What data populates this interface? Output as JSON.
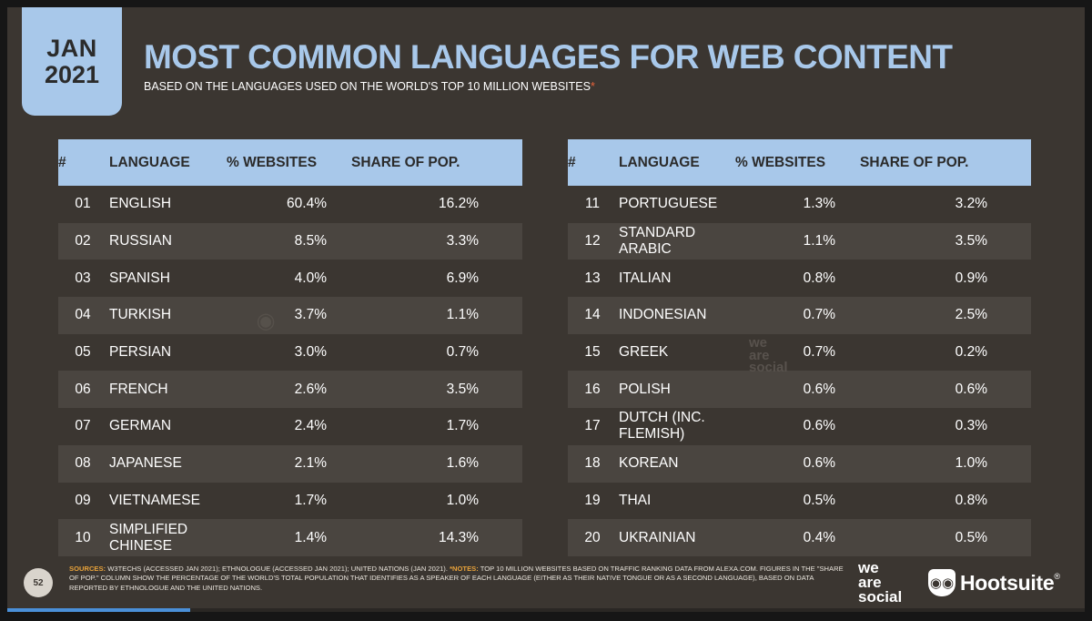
{
  "badge": {
    "month": "JAN",
    "year": "2021"
  },
  "title": "MOST COMMON LANGUAGES FOR WEB CONTENT",
  "subtitle": "BASED ON THE LANGUAGES USED ON THE WORLD'S TOP 10 MILLION WEBSITES",
  "subtitle_mark": "*",
  "columns": {
    "num": "#",
    "language": "LANGUAGE",
    "websites": "% WEBSITES",
    "share": "SHARE OF POP."
  },
  "left_rows": [
    {
      "num": "01",
      "language": "ENGLISH",
      "websites": "60.4%",
      "share": "16.2%"
    },
    {
      "num": "02",
      "language": "RUSSIAN",
      "websites": "8.5%",
      "share": "3.3%"
    },
    {
      "num": "03",
      "language": "SPANISH",
      "websites": "4.0%",
      "share": "6.9%"
    },
    {
      "num": "04",
      "language": "TURKISH",
      "websites": "3.7%",
      "share": "1.1%"
    },
    {
      "num": "05",
      "language": "PERSIAN",
      "websites": "3.0%",
      "share": "0.7%"
    },
    {
      "num": "06",
      "language": "FRENCH",
      "websites": "2.6%",
      "share": "3.5%"
    },
    {
      "num": "07",
      "language": "GERMAN",
      "websites": "2.4%",
      "share": "1.7%"
    },
    {
      "num": "08",
      "language": "JAPANESE",
      "websites": "2.1%",
      "share": "1.6%"
    },
    {
      "num": "09",
      "language": "VIETNAMESE",
      "websites": "1.7%",
      "share": "1.0%"
    },
    {
      "num": "10",
      "language": "SIMPLIFIED CHINESE",
      "websites": "1.4%",
      "share": "14.3%"
    }
  ],
  "right_rows": [
    {
      "num": "11",
      "language": "PORTUGUESE",
      "websites": "1.3%",
      "share": "3.2%"
    },
    {
      "num": "12",
      "language": "STANDARD ARABIC",
      "websites": "1.1%",
      "share": "3.5%"
    },
    {
      "num": "13",
      "language": "ITALIAN",
      "websites": "0.8%",
      "share": "0.9%"
    },
    {
      "num": "14",
      "language": "INDONESIAN",
      "websites": "0.7%",
      "share": "2.5%"
    },
    {
      "num": "15",
      "language": "GREEK",
      "websites": "0.7%",
      "share": "0.2%"
    },
    {
      "num": "16",
      "language": "POLISH",
      "websites": "0.6%",
      "share": "0.6%"
    },
    {
      "num": "17",
      "language": "DUTCH (INC. FLEMISH)",
      "websites": "0.6%",
      "share": "0.3%"
    },
    {
      "num": "18",
      "language": "KOREAN",
      "websites": "0.6%",
      "share": "1.0%"
    },
    {
      "num": "19",
      "language": "THAI",
      "websites": "0.5%",
      "share": "0.8%"
    },
    {
      "num": "20",
      "language": "UKRAINIAN",
      "websites": "0.4%",
      "share": "0.5%"
    }
  ],
  "footer": {
    "page_number": "52",
    "sources_label": "SOURCES:",
    "sources_text": "W3TECHS (ACCESSED JAN 2021); ETHNOLOGUE (ACCESSED JAN 2021); UNITED NATIONS (JAN 2021).",
    "notes_label": "*NOTES:",
    "notes_text": "TOP 10 MILLION WEBSITES BASED ON TRAFFIC RANKING DATA FROM ALEXA.COM. FIGURES IN THE \"SHARE OF POP.\" COLUMN SHOW THE PERCENTAGE OF THE WORLD'S TOTAL POPULATION THAT IDENTIFIES AS A SPEAKER OF EACH LANGUAGE (EITHER AS THEIR NATIVE TONGUE OR AS A SECOND LANGUAGE), BASED ON DATA REPORTED BY ETHNOLOGUE AND THE UNITED NATIONS."
  },
  "brands": {
    "we_are_social": [
      "we",
      "are",
      "social"
    ],
    "hootsuite": "Hootsuite",
    "hootsuite_mark": "®"
  },
  "watermark_text": [
    "we",
    "are",
    "social"
  ],
  "progress": {
    "fraction": 0.17
  },
  "colors": {
    "accent": "#a8c8ea",
    "background": "#3b3631",
    "highlight": "#e8a23a",
    "star": "#e8623a"
  }
}
